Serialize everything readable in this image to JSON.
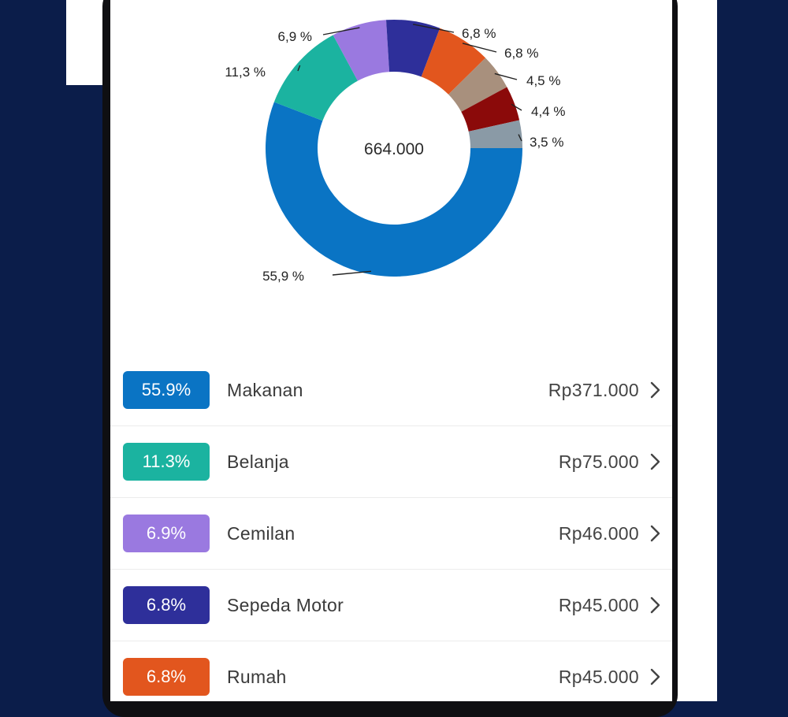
{
  "colors": {
    "makanan": "#0a74c4",
    "belanja": "#1bb3a0",
    "cemilan": "#9a79e0",
    "sepeda_motor": "#2e2f9a",
    "rumah": "#e2561e",
    "cat6": "#a8907d",
    "cat7": "#8b0a0a",
    "cat8": "#8a9aa6"
  },
  "chart_data": {
    "type": "pie",
    "variant": "donut",
    "center_label": "664.000",
    "slices": [
      {
        "value": 55.9,
        "label": "55,9 %",
        "color": "#0a74c4"
      },
      {
        "value": 11.3,
        "label": "11,3 %",
        "color": "#1bb3a0"
      },
      {
        "value": 6.9,
        "label": "6,9 %",
        "color": "#9a79e0"
      },
      {
        "value": 6.8,
        "label": "6,8 %",
        "color": "#2e2f9a"
      },
      {
        "value": 6.8,
        "label": "6,8 %",
        "color": "#e2561e"
      },
      {
        "value": 4.5,
        "label": "4,5 %",
        "color": "#a8907d"
      },
      {
        "value": 4.4,
        "label": "4,4 %",
        "color": "#8b0a0a"
      },
      {
        "value": 3.5,
        "label": "3,5 %",
        "color": "#8a9aa6"
      }
    ]
  },
  "list": {
    "items": [
      {
        "percent": "55.9%",
        "name": "Makanan",
        "amount": "Rp371.000",
        "color": "#0a74c4"
      },
      {
        "percent": "11.3%",
        "name": "Belanja",
        "amount": "Rp75.000",
        "color": "#1bb3a0"
      },
      {
        "percent": "6.9%",
        "name": "Cemilan",
        "amount": "Rp46.000",
        "color": "#9a79e0"
      },
      {
        "percent": "6.8%",
        "name": "Sepeda Motor",
        "amount": "Rp45.000",
        "color": "#2e2f9a"
      },
      {
        "percent": "6.8%",
        "name": "Rumah",
        "amount": "Rp45.000",
        "color": "#e2561e"
      }
    ]
  },
  "icons": {
    "row_arrow": "chevron-right-icon"
  }
}
